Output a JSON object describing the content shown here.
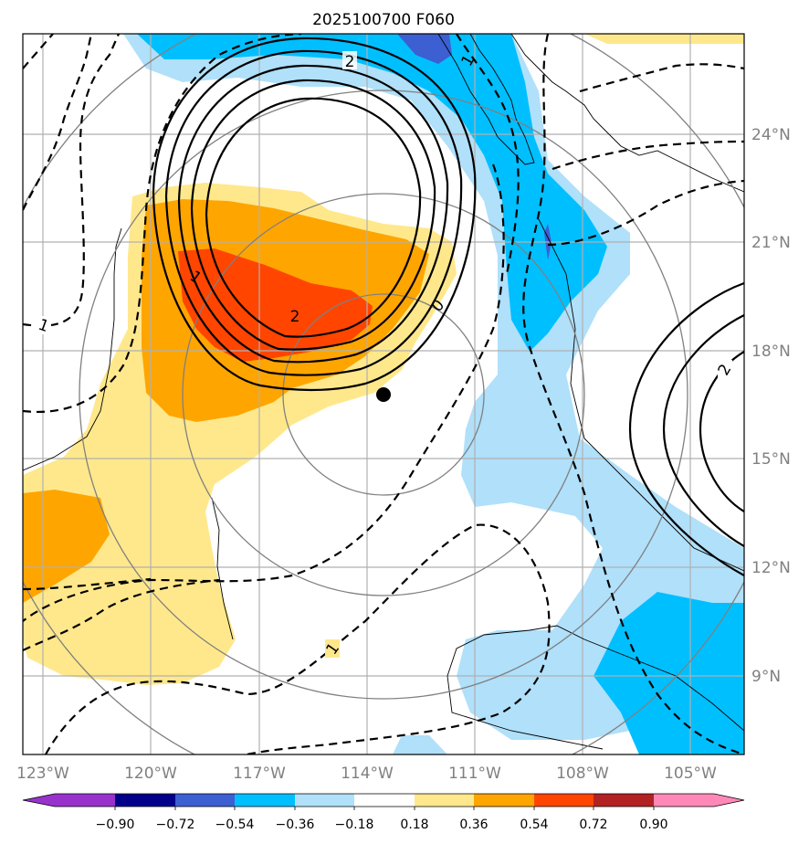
{
  "title": "2025100700 F060",
  "colors": {
    "neg_090": "#9932cc",
    "neg_072": "#00008b",
    "neg_054": "#3c5fd2",
    "neg_036": "#00bfff",
    "neg_018": "#b0e0fa",
    "neutral": "#ffffff",
    "pos_018": "#ffe88c",
    "pos_036": "#ffa500",
    "pos_054": "#ff4500",
    "pos_072": "#b22222",
    "pos_090": "#ff88b8",
    "storm_marker": "#000000",
    "gridline": "#b0b0b0",
    "ring": "#808080"
  },
  "map": {
    "longitude_labels": [
      "123°W",
      "120°W",
      "117°W",
      "114°W",
      "111°W",
      "108°W",
      "105°W"
    ],
    "latitude_labels": [
      "24°N",
      "21°N",
      "18°N",
      "15°N",
      "12°N",
      "9°N"
    ],
    "contour_labels": [
      "2",
      "1",
      "2",
      "0",
      "1",
      "2",
      "1",
      "1"
    ],
    "storm_center": {
      "lon": -113.6,
      "lat": 16.7
    }
  },
  "colorbar": {
    "tick_labels": [
      "−0.90",
      "−0.72",
      "−0.54",
      "−0.36",
      "−0.18",
      "0.18",
      "0.36",
      "0.54",
      "0.72",
      "0.90"
    ],
    "levels": [
      -0.9,
      -0.72,
      -0.54,
      -0.36,
      -0.18,
      0.18,
      0.36,
      0.54,
      0.72,
      0.9
    ]
  }
}
